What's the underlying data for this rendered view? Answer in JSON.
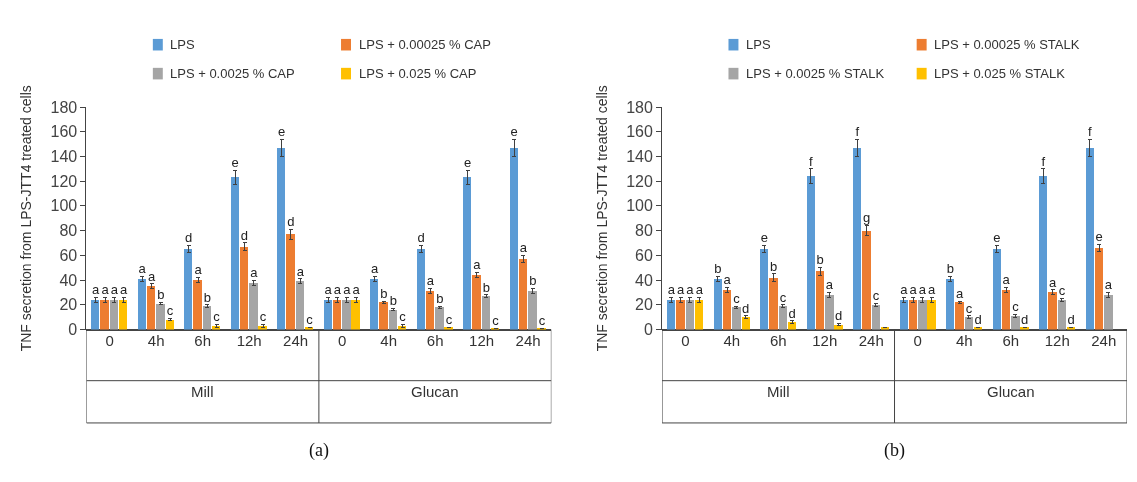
{
  "chart_data": [
    {
      "type": "bar",
      "title": "(a)",
      "ylabel": "TNF secretion from LPS-JTT4 treated cells",
      "categories": [
        "0",
        "4h",
        "6h",
        "12h",
        "24h",
        "0",
        "4h",
        "6h",
        "12h",
        "24h"
      ],
      "annotations": [
        "Mill",
        "Glucan"
      ],
      "ylim": [
        0,
        180
      ],
      "yticks": [
        0,
        20,
        40,
        60,
        80,
        100,
        120,
        140,
        160,
        180
      ],
      "legend": "top",
      "series": [
        {
          "name": "LPS",
          "color": "#5b9bd5",
          "values": [
            24,
            41,
            65,
            123,
            147,
            24,
            41,
            65,
            123,
            147
          ],
          "errors": [
            2,
            2,
            3,
            6,
            7,
            2,
            2,
            3,
            6,
            7
          ],
          "value_labels": [
            "a",
            "a",
            "d",
            "e",
            "e",
            "a",
            "a",
            "d",
            "e",
            "e"
          ]
        },
        {
          "name": "LPS + 0.00025 % CAP",
          "color": "#ed7d31",
          "values": [
            24,
            35,
            40,
            67,
            77,
            24,
            22,
            31,
            44,
            57
          ],
          "errors": [
            2,
            2,
            2,
            3,
            4,
            2,
            1,
            2,
            2,
            3
          ],
          "value_labels": [
            "a",
            "a",
            "a",
            "d",
            "d",
            "a",
            "b",
            "a",
            "a",
            "a"
          ]
        },
        {
          "name": "LPS + 0.0025 % CAP",
          "color": "#a5a5a5",
          "values": [
            24,
            21,
            19,
            38,
            39,
            24,
            16,
            18,
            27,
            31
          ],
          "errors": [
            2,
            1,
            1,
            2,
            2,
            2,
            1,
            1,
            1,
            2
          ],
          "value_labels": [
            "a",
            "b",
            "b",
            "a",
            "a",
            "a",
            "b",
            "b",
            "b",
            "b"
          ]
        },
        {
          "name": "LPS + 0.025 % CAP",
          "color": "#ffc000",
          "values": [
            24,
            8,
            3,
            3,
            2,
            24,
            3,
            2,
            1,
            1
          ],
          "errors": [
            2,
            1,
            1,
            1,
            null,
            2,
            1,
            null,
            null,
            null
          ],
          "value_labels": [
            "a",
            "c",
            "c",
            "c",
            "c",
            "a",
            "c",
            "c",
            "c",
            "c"
          ]
        }
      ]
    },
    {
      "type": "bar",
      "title": "(b)",
      "ylabel": "TNF secretion from LPS-JTT4 treated cells",
      "categories": [
        "0",
        "4h",
        "6h",
        "12h",
        "24h",
        "0",
        "4h",
        "6h",
        "12h",
        "24h"
      ],
      "annotations": [
        "Mill",
        "Glucan"
      ],
      "ylim": [
        0,
        180
      ],
      "yticks": [
        0,
        20,
        40,
        60,
        80,
        100,
        120,
        140,
        160,
        180
      ],
      "legend": "top",
      "series": [
        {
          "name": "LPS",
          "color": "#5b9bd5",
          "values": [
            24,
            41,
            65,
            124,
            147,
            24,
            41,
            65,
            124,
            147
          ],
          "errors": [
            2,
            2,
            3,
            6,
            7,
            2,
            2,
            3,
            6,
            7
          ],
          "value_labels": [
            "a",
            "b",
            "e",
            "f",
            "f",
            "a",
            "b",
            "e",
            "f",
            "f"
          ]
        },
        {
          "name": "LPS + 0.00025 % STALK",
          "color": "#ed7d31",
          "values": [
            24,
            32,
            42,
            47,
            80,
            24,
            22,
            32,
            30,
            66
          ],
          "errors": [
            2,
            2,
            3,
            3,
            4,
            2,
            1,
            2,
            2,
            3
          ],
          "value_labels": [
            "a",
            "a",
            "b",
            "b",
            "g",
            "a",
            "a",
            "a",
            "a",
            "e"
          ]
        },
        {
          "name": "LPS + 0.0025 % STALK",
          "color": "#a5a5a5",
          "values": [
            24,
            18,
            19,
            28,
            20,
            24,
            10,
            11,
            24,
            28
          ],
          "errors": [
            2,
            1,
            1,
            2,
            1,
            2,
            1,
            1,
            1,
            2
          ],
          "value_labels": [
            "a",
            "c",
            "c",
            "a",
            "c",
            "a",
            "c",
            "c",
            "c",
            "a"
          ]
        },
        {
          "name": "LPS + 0.025 % STALK",
          "color": "#ffc000",
          "values": [
            24,
            10,
            6,
            4,
            2,
            24,
            2,
            2,
            2,
            null
          ],
          "errors": [
            2,
            1,
            1,
            1,
            null,
            2,
            null,
            null,
            null,
            null
          ],
          "value_labels": [
            "a",
            "d",
            "d",
            "d",
            null,
            "a",
            "d",
            "d",
            "d",
            null
          ]
        }
      ]
    }
  ]
}
